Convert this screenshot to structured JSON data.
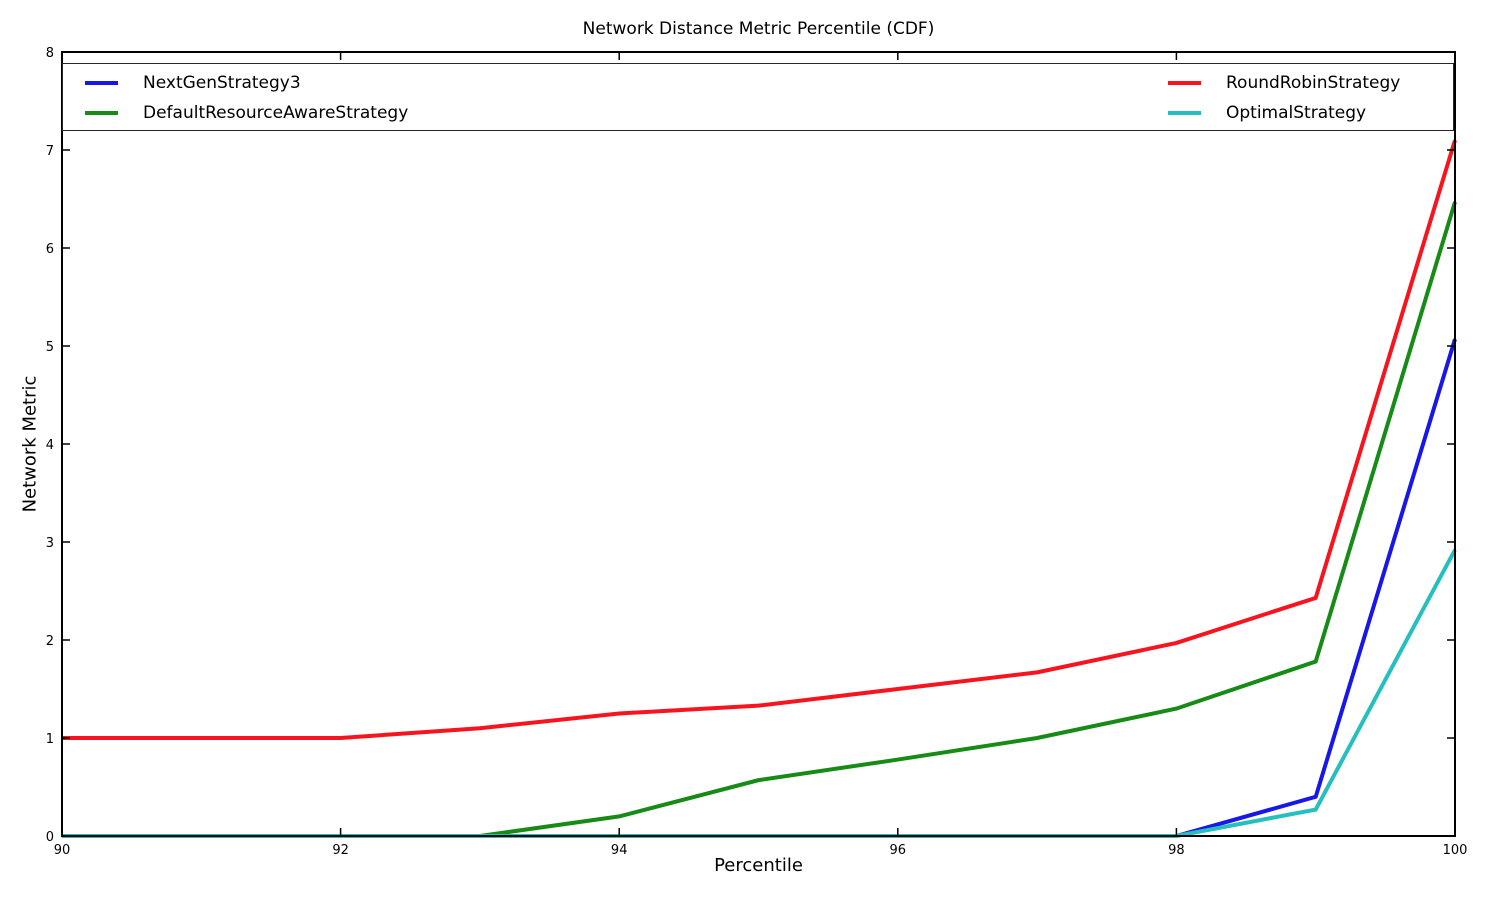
{
  "chart_data": {
    "type": "line",
    "title": "Network Distance Metric Percentile (CDF)",
    "xlabel": "Percentile",
    "ylabel": "Network Metric",
    "xlim": [
      90,
      100
    ],
    "ylim": [
      0,
      8
    ],
    "xticks": [
      90,
      92,
      94,
      96,
      98,
      100
    ],
    "yticks": [
      0,
      1,
      2,
      3,
      4,
      5,
      6,
      7,
      8
    ],
    "grid": false,
    "legend_position": "top, expanded full-width, 2 columns",
    "line_width": 4,
    "x": [
      90,
      91,
      92,
      93,
      94,
      95,
      96,
      97,
      98,
      99,
      100
    ],
    "series": [
      {
        "name": "NextGenStrategy3",
        "color": "#1717e8",
        "values": [
          0,
          0,
          0,
          0,
          0,
          0,
          0,
          0,
          0,
          0.4,
          5.07
        ]
      },
      {
        "name": "DefaultResourceAwareStrategy",
        "color": "#168b16",
        "values": [
          0,
          0,
          0,
          0,
          0.2,
          0.57,
          0.78,
          1.0,
          1.3,
          1.78,
          6.47
        ]
      },
      {
        "name": "RoundRobinStrategy",
        "color": "#f8141e",
        "values": [
          1.0,
          1.0,
          1.0,
          1.1,
          1.25,
          1.33,
          1.5,
          1.67,
          1.97,
          2.43,
          7.1
        ]
      },
      {
        "name": "OptimalStrategy",
        "color": "#26bfbf",
        "values": [
          0,
          0,
          0,
          0,
          0,
          0,
          0,
          0,
          0,
          0.27,
          2.92
        ]
      }
    ],
    "legend_columns": [
      [
        0,
        1
      ],
      [
        2,
        3
      ]
    ],
    "axis_color": "#000000",
    "background_color": "#ffffff"
  }
}
